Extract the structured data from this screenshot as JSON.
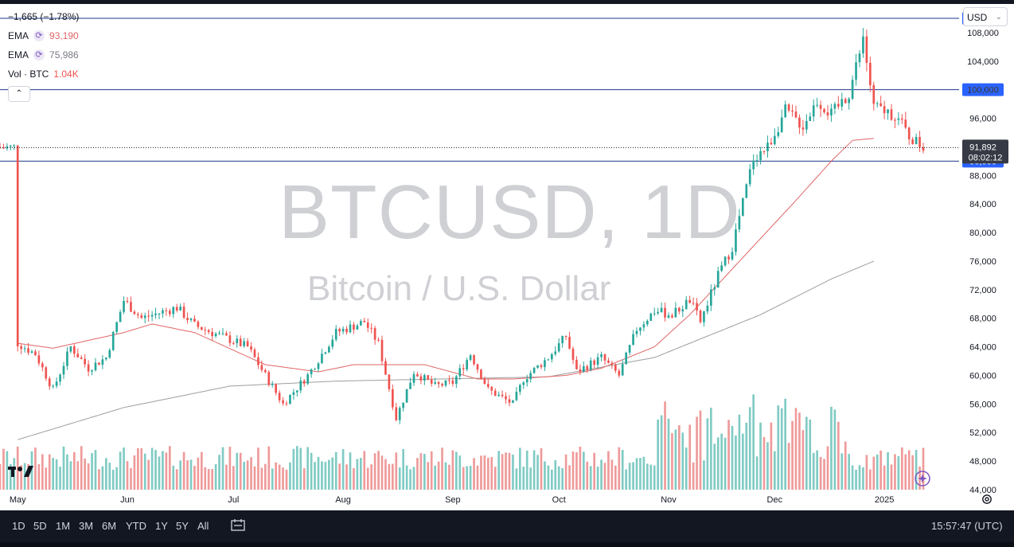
{
  "legend": {
    "change": "−1,665 (−1.78%)",
    "ema1_label": "EMA",
    "ema1_value": "93,190",
    "ema2_label": "EMA",
    "ema2_value": "75,986",
    "vol_label": "Vol · BTC",
    "vol_value": "1.04K",
    "collapse_glyph": "⌃"
  },
  "toolbar": {
    "currency": "USD",
    "currency_caret": "⌄"
  },
  "watermark": {
    "symbol": "BTCUSD, 1D",
    "description": "Bitcoin / U.S. Dollar"
  },
  "colors": {
    "up": "#26a69a",
    "down": "#ef5350",
    "ema_fast": "#e06666",
    "ema_slow": "#9e9e9e",
    "hline": "#2962ff",
    "vol_up": "#80cbc4",
    "vol_down": "#ef9a9a"
  },
  "chart_data": {
    "type": "candlestick",
    "price_axis": {
      "ylim": [
        44000,
        112000
      ],
      "ticks": [
        44000,
        48000,
        52000,
        56000,
        60000,
        64000,
        68000,
        72000,
        76000,
        80000,
        84000,
        88000,
        92000,
        96000,
        100000,
        104000,
        108000
      ]
    },
    "price_tick_labels": [
      "44,000",
      "48,000",
      "52,000",
      "56,000",
      "60,000",
      "64,000",
      "68,000",
      "72,000",
      "76,000",
      "80,000",
      "84,000",
      "88,000",
      "96,000",
      "100,000",
      "104,000",
      "108,000"
    ],
    "time_axis": {
      "labels": [
        "May",
        "Jun",
        "Jul",
        "Aug",
        "Sep",
        "Oct",
        "Nov",
        "Dec",
        "2025"
      ],
      "label_positions": [
        -30,
        1,
        31,
        62,
        93,
        123,
        154,
        184,
        215
      ]
    },
    "horizontal_lines": [
      {
        "price": 110000,
        "label": "110,000"
      },
      {
        "price": 100000,
        "label": "100,000"
      },
      {
        "price": 90000,
        "label": "90,000"
      }
    ],
    "last_price": {
      "price": 91892,
      "label": "91,892",
      "countdown": "08:02:12"
    },
    "ema_fast_anchors": [
      [
        -30,
        64500
      ],
      [
        -20,
        63800
      ],
      [
        0,
        66000
      ],
      [
        8,
        67200
      ],
      [
        20,
        66000
      ],
      [
        40,
        61500
      ],
      [
        55,
        60500
      ],
      [
        65,
        61500
      ],
      [
        85,
        61500
      ],
      [
        100,
        59500
      ],
      [
        110,
        59500
      ],
      [
        125,
        60000
      ],
      [
        135,
        61000
      ],
      [
        150,
        64000
      ],
      [
        160,
        68500
      ],
      [
        175,
        76500
      ],
      [
        190,
        84500
      ],
      [
        200,
        90000
      ],
      [
        206,
        92900
      ],
      [
        212,
        93190
      ]
    ],
    "ema_slow_anchors": [
      [
        -30,
        51000
      ],
      [
        0,
        55500
      ],
      [
        30,
        58500
      ],
      [
        60,
        59200
      ],
      [
        90,
        59500
      ],
      [
        120,
        59800
      ],
      [
        150,
        62500
      ],
      [
        180,
        68500
      ],
      [
        200,
        73500
      ],
      [
        212,
        75986
      ]
    ],
    "price_anchors": [
      [
        -30,
        64500
      ],
      [
        -25,
        63000
      ],
      [
        -20,
        58000
      ],
      [
        -15,
        64000
      ],
      [
        -10,
        61000
      ],
      [
        -5,
        62500
      ],
      [
        0,
        70500
      ],
      [
        5,
        68000
      ],
      [
        15,
        69500
      ],
      [
        20,
        67000
      ],
      [
        35,
        64000
      ],
      [
        45,
        56000
      ],
      [
        52,
        60000
      ],
      [
        60,
        66000
      ],
      [
        68,
        67500
      ],
      [
        72,
        64500
      ],
      [
        77,
        54000
      ],
      [
        82,
        60500
      ],
      [
        88,
        58500
      ],
      [
        93,
        59000
      ],
      [
        98,
        63000
      ],
      [
        103,
        58000
      ],
      [
        110,
        56000
      ],
      [
        113,
        59500
      ],
      [
        120,
        62500
      ],
      [
        125,
        65500
      ],
      [
        128,
        60500
      ],
      [
        135,
        62500
      ],
      [
        140,
        60000
      ],
      [
        145,
        66500
      ],
      [
        150,
        69000
      ],
      [
        155,
        68500
      ],
      [
        160,
        70500
      ],
      [
        163,
        67500
      ],
      [
        168,
        74000
      ],
      [
        172,
        78000
      ],
      [
        178,
        90500
      ],
      [
        182,
        92000
      ],
      [
        187,
        97000
      ],
      [
        192,
        95000
      ],
      [
        196,
        98500
      ],
      [
        200,
        96500
      ],
      [
        205,
        99500
      ],
      [
        209,
        107000
      ],
      [
        212,
        97500
      ],
      [
        218,
        96500
      ],
      [
        222,
        93500
      ],
      [
        226,
        91892
      ]
    ],
    "axis_x_min": -35,
    "axis_x_max": 226,
    "volume_axis": {
      "max": 3200000
    }
  },
  "range_buttons": [
    "1D",
    "5D",
    "1M",
    "3M",
    "6M",
    "YTD",
    "1Y",
    "5Y",
    "All"
  ],
  "clock": "15:57:47 (UTC)"
}
